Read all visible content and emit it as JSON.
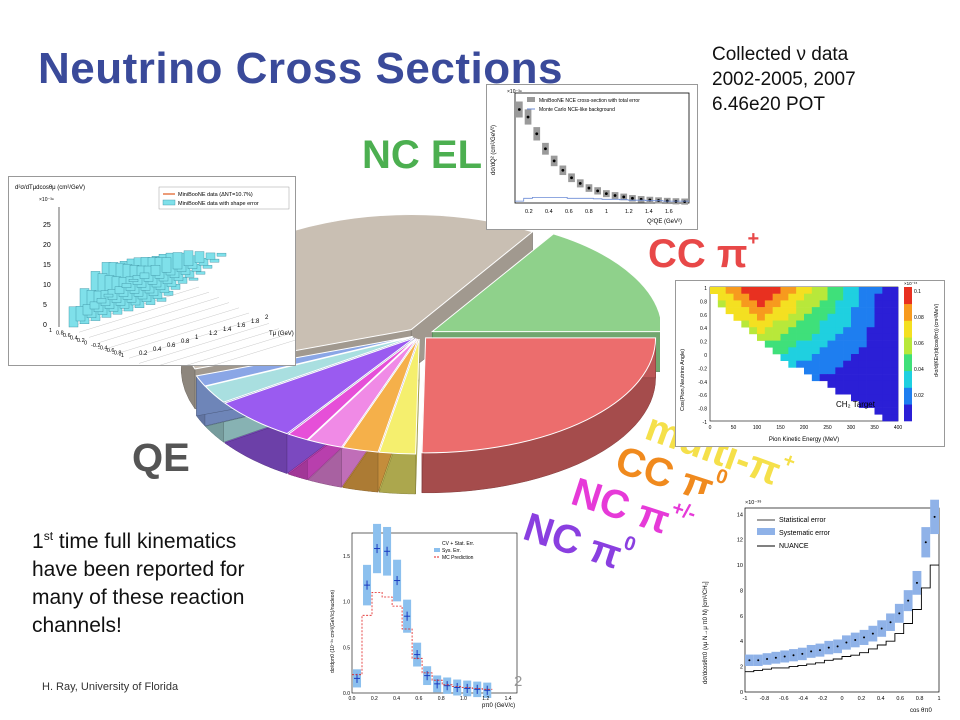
{
  "slide": {
    "title": "Neutrino Cross Sections",
    "collected": [
      "Collected ν data",
      "2002-2005, 2007",
      "6.46e20 POT"
    ],
    "first_time": {
      "superscript": "st",
      "lines": [
        "1",
        " time full kinematics",
        "have been reported for",
        "many of these reaction",
        "channels!"
      ]
    },
    "footer": "H. Ray, University of Florida",
    "page_number": "2"
  },
  "pie_labels": {
    "nc_el": "NC EL",
    "cc_pip": "CC π",
    "cc_pip_sup": "+",
    "qe": "QE",
    "multi_pi": "multi-π",
    "multi_pi_sup": "+",
    "cc_pi0": "CC π",
    "cc_pi0_sup": "0",
    "nc_pipm": "NC π",
    "nc_pipm_sup": "+/-",
    "nc_pi0": "NC π",
    "nc_pi0_sup": "0"
  },
  "chart_data": {
    "type": "pie",
    "style": "3d-exploded",
    "slices": [
      {
        "label": "QE",
        "value": 39,
        "color": "#c9bfb3"
      },
      {
        "label": "NC EL",
        "value": 16,
        "color": "#8fd18b"
      },
      {
        "label": "CC π+",
        "value": 25,
        "color": "#ec6d6d"
      },
      {
        "label": "multi-π+",
        "value": 2.5,
        "color": "#f5ef6e"
      },
      {
        "label": "CC π0",
        "value": 2.5,
        "color": "#f5b04a"
      },
      {
        "label": "NC π+/-",
        "value": 2.5,
        "color": "#f08ae6"
      },
      {
        "label": "",
        "value": 1.5,
        "color": "#e64fd8"
      },
      {
        "label": "NC π0",
        "value": 6,
        "color": "#9a5bf0"
      },
      {
        "label": "",
        "value": 2.5,
        "color": "#a9dfe0"
      },
      {
        "label": "",
        "value": 1.5,
        "color": "#8aa6e6"
      }
    ]
  },
  "inset_plots": {
    "ncel": {
      "legend": [
        "MiniBooNE NCE cross-section with total error",
        "Monte Carlo NCE-like background"
      ],
      "ylabel": "dσ/dQ² (cm²/GeV²)",
      "yexp": "×10⁻³⁹",
      "xlabel": "Q²QE (GeV²)",
      "xticks": [
        "0.2",
        "0.4",
        "0.6",
        "0.8",
        "1",
        "1.2",
        "1.4",
        "1.6"
      ],
      "values": [
        1.0,
        0.92,
        0.74,
        0.58,
        0.45,
        0.35,
        0.27,
        0.21,
        0.16,
        0.13,
        0.1,
        0.08,
        0.065,
        0.05,
        0.04,
        0.033,
        0.027,
        0.022,
        0.018,
        0.015
      ],
      "background": [
        0.02,
        0.05,
        0.06,
        0.06,
        0.06,
        0.06,
        0.05,
        0.05,
        0.05,
        0.045,
        0.04,
        0.04,
        0.035,
        0.03,
        0.03,
        0.025,
        0.025,
        0.02,
        0.02,
        0.02
      ]
    },
    "qe": {
      "legend": [
        "MiniBooNE data (ΔNT=10.7%)",
        "MiniBooNE data with shape error"
      ],
      "zlabel": "d²σ/dTμdcosθμ (cm²/GeV)",
      "zexp": "×10⁻³⁹",
      "zticks": [
        "0",
        "5",
        "10",
        "15",
        "20",
        "25"
      ],
      "cos_ticks": [
        "1",
        "0.8",
        "0.6",
        "0.4",
        "0.2",
        "0",
        "-0.2",
        "-0.4",
        "-0.6",
        "-0.8",
        "-1"
      ],
      "tmu_ticks": [
        "0.2",
        "0.4",
        "0.6",
        "0.8",
        "1",
        "1.2",
        "1.4",
        "1.6",
        "1.8",
        "2"
      ],
      "tmu_label": "Tμ (GeV)"
    },
    "ccpip": {
      "ylabel": "Cos(Pion,Neutrino Angle)",
      "xlabel": "Pion Kinetic Energy (MeV)",
      "target": "CH₂ Target",
      "yticks": [
        "1",
        "0.8",
        "0.6",
        "0.4",
        "0.2",
        "0",
        "-0.2",
        "-0.4",
        "-0.6",
        "-0.8",
        "-1"
      ],
      "xticks": [
        "0",
        "50",
        "100",
        "150",
        "200",
        "250",
        "300",
        "350",
        "400"
      ],
      "zlabel": "d²σ/d(KEπ)d(cos(θπ)) (cm²/MeV)",
      "zexp": "×10⁻¹⁵",
      "zticks": [
        "0.1",
        "0.08",
        "0.06",
        "0.04",
        "0.02"
      ]
    },
    "ncpi0_mom": {
      "legend": [
        "CV + Stat. Err.",
        "Sys. Err.",
        "MC Prediction"
      ],
      "ylabel": "dσ/dpπ0 (10⁻³⁹ cm²/(GeV/c)/nucleon)",
      "xlabel": "pπ0 (GeV/c)",
      "xticks": [
        "0.0",
        "0.2",
        "0.4",
        "0.6",
        "0.8",
        "1.0",
        "1.2",
        "1.4"
      ],
      "yticks": [
        "0.0",
        "0.5",
        "1.0",
        "1.5"
      ],
      "values": [
        0.16,
        1.18,
        1.58,
        1.55,
        1.23,
        0.84,
        0.42,
        0.19,
        0.1,
        0.08,
        0.06,
        0.05,
        0.04,
        0.03
      ],
      "mc": [
        0.2,
        0.85,
        1.1,
        1.05,
        0.95,
        0.7,
        0.38,
        0.22,
        0.14,
        0.09,
        0.07,
        0.06,
        0.05,
        0.04
      ]
    },
    "ncpi0_cos": {
      "legend": [
        "Statistical error",
        "Systematic error",
        "NUANCE"
      ],
      "ylabel": "dσ/dcosθπ0 (νμ N→μ π0 N) [cm²/CH₂]",
      "yexp": "×10⁻³⁹",
      "xlabel": "cos θπ0",
      "xticks": [
        "-1",
        "-0.8",
        "-0.6",
        "-0.4",
        "-0.2",
        "0",
        "0.2",
        "0.4",
        "0.6",
        "0.8",
        "1"
      ],
      "yticks": [
        "0",
        "2",
        "4",
        "6",
        "8",
        "10",
        "12",
        "14"
      ],
      "values": [
        2.5,
        2.5,
        2.6,
        2.7,
        2.8,
        2.9,
        3.0,
        3.2,
        3.3,
        3.5,
        3.6,
        3.9,
        4.1,
        4.3,
        4.6,
        5.0,
        5.5,
        6.2,
        7.2,
        8.6,
        11.8,
        13.8
      ],
      "mc": [
        1.6,
        1.7,
        1.8,
        1.9,
        1.9,
        2.0,
        2.1,
        2.2,
        2.3,
        2.5,
        2.6,
        2.8,
        2.9,
        3.1,
        3.4,
        3.7,
        4.0,
        4.6,
        5.4,
        6.5,
        8.2,
        10.0
      ]
    }
  }
}
